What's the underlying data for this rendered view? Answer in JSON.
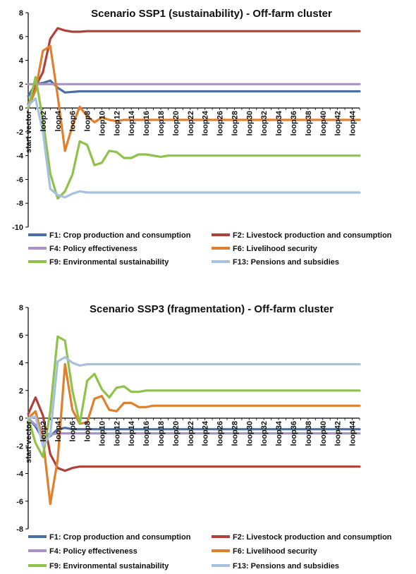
{
  "chart_data": [
    {
      "type": "line",
      "title": "Scenario SSP1 (sustainability) - Off-farm cluster",
      "xlabel": "",
      "ylabel": "",
      "ylim": [
        -10,
        8
      ],
      "yticks": [
        8,
        6,
        4,
        2,
        0,
        -2,
        -4,
        -6,
        -8,
        -10
      ],
      "categories": [
        "start vector",
        "loop1",
        "loop2",
        "loop3",
        "loop4",
        "loop5",
        "loop6",
        "loop7",
        "loop8",
        "loop9",
        "loop10",
        "loop11",
        "loop12",
        "loop13",
        "loop14",
        "loop15",
        "loop16",
        "loop17",
        "loop18",
        "loop19",
        "loop20",
        "loop21",
        "loop22",
        "loop23",
        "loop24",
        "loop25",
        "loop26",
        "loop27",
        "loop28",
        "loop29",
        "loop30",
        "loop31",
        "loop32",
        "loop33",
        "loop34",
        "loop35",
        "loop36",
        "loop37",
        "loop38",
        "loop39",
        "loop40",
        "loop41",
        "loop42",
        "loop43",
        "loop44",
        "loop45"
      ],
      "xtick_labels": [
        "start vector",
        "loop2",
        "loop4",
        "loop6",
        "loop8",
        "loop10",
        "loop12",
        "loop14",
        "loop16",
        "loop18",
        "loop20",
        "loop22",
        "loop24",
        "loop26",
        "loop28",
        "loop30",
        "loop32",
        "loop34",
        "loop36",
        "loop38",
        "loop40",
        "loop42",
        "loop44"
      ],
      "legend_position": "bottom",
      "series": [
        {
          "name": "F1: Crop production and consumption",
          "color": "#4a6fa5",
          "values": [
            1.0,
            2.0,
            2.1,
            2.3,
            1.7,
            1.3,
            1.35,
            1.4,
            1.4,
            1.4,
            1.4,
            1.4,
            1.4,
            1.4,
            1.4,
            1.4,
            1.4,
            1.4,
            1.4,
            1.4,
            1.4,
            1.4,
            1.4,
            1.4,
            1.4,
            1.4,
            1.4,
            1.4,
            1.4,
            1.4,
            1.4,
            1.4,
            1.4,
            1.4,
            1.4,
            1.4,
            1.4,
            1.4,
            1.4,
            1.4,
            1.4,
            1.4,
            1.4,
            1.4,
            1.4,
            1.4
          ]
        },
        {
          "name": "F2: Livestock production and consumption",
          "color": "#b0403a",
          "values": [
            0.3,
            1.8,
            3.0,
            5.8,
            6.7,
            6.5,
            6.4,
            6.4,
            6.45,
            6.45,
            6.45,
            6.45,
            6.45,
            6.45,
            6.45,
            6.45,
            6.45,
            6.45,
            6.45,
            6.45,
            6.45,
            6.45,
            6.45,
            6.45,
            6.45,
            6.45,
            6.45,
            6.45,
            6.45,
            6.45,
            6.45,
            6.45,
            6.45,
            6.45,
            6.45,
            6.45,
            6.45,
            6.45,
            6.45,
            6.45,
            6.45,
            6.45,
            6.45,
            6.45,
            6.45,
            6.45
          ]
        },
        {
          "name": "F4: Policy effectiveness",
          "color": "#a892c8",
          "values": [
            2.0,
            2.0,
            2.0,
            2.0,
            2.0,
            2.0,
            2.0,
            2.0,
            2.0,
            2.0,
            2.0,
            2.0,
            2.0,
            2.0,
            2.0,
            2.0,
            2.0,
            2.0,
            2.0,
            2.0,
            2.0,
            2.0,
            2.0,
            2.0,
            2.0,
            2.0,
            2.0,
            2.0,
            2.0,
            2.0,
            2.0,
            2.0,
            2.0,
            2.0,
            2.0,
            2.0,
            2.0,
            2.0,
            2.0,
            2.0,
            2.0,
            2.0,
            2.0,
            2.0,
            2.0,
            2.0
          ]
        },
        {
          "name": "F6: Livelihood security",
          "color": "#e07f2c",
          "values": [
            0.0,
            1.5,
            4.8,
            5.2,
            1.0,
            -3.6,
            -1.5,
            0.1,
            -0.7,
            -1.2,
            -0.8,
            -1.0,
            -1.1,
            -1.0,
            -1.0,
            -1.0,
            -1.0,
            -1.0,
            -1.0,
            -1.0,
            -1.0,
            -1.0,
            -1.0,
            -1.0,
            -1.0,
            -1.0,
            -1.0,
            -1.0,
            -1.0,
            -1.0,
            -1.0,
            -1.0,
            -1.0,
            -1.0,
            -1.0,
            -1.0,
            -1.0,
            -1.0,
            -1.0,
            -1.0,
            -1.0,
            -1.0,
            -1.0,
            -1.0,
            -1.0,
            -1.0
          ]
        },
        {
          "name": "F9: Environmental sustainability",
          "color": "#8fc24b",
          "values": [
            0.0,
            2.6,
            -1.0,
            -5.5,
            -7.6,
            -7.0,
            -5.6,
            -2.8,
            -3.1,
            -4.8,
            -4.6,
            -3.6,
            -3.7,
            -4.2,
            -4.2,
            -3.9,
            -3.9,
            -4.0,
            -4.1,
            -4.0,
            -4.0,
            -4.0,
            -4.0,
            -4.0,
            -4.0,
            -4.0,
            -4.0,
            -4.0,
            -4.0,
            -4.0,
            -4.0,
            -4.0,
            -4.0,
            -4.0,
            -4.0,
            -4.0,
            -4.0,
            -4.0,
            -4.0,
            -4.0,
            -4.0,
            -4.0,
            -4.0,
            -4.0,
            -4.0,
            -4.0
          ]
        },
        {
          "name": "F13: Pensions and subsidies",
          "color": "#a8c0e0",
          "values": [
            0.2,
            0.8,
            -2.0,
            -6.8,
            -7.3,
            -7.5,
            -7.2,
            -7.0,
            -7.1,
            -7.1,
            -7.1,
            -7.1,
            -7.1,
            -7.1,
            -7.1,
            -7.1,
            -7.1,
            -7.1,
            -7.1,
            -7.1,
            -7.1,
            -7.1,
            -7.1,
            -7.1,
            -7.1,
            -7.1,
            -7.1,
            -7.1,
            -7.1,
            -7.1,
            -7.1,
            -7.1,
            -7.1,
            -7.1,
            -7.1,
            -7.1,
            -7.1,
            -7.1,
            -7.1,
            -7.1,
            -7.1,
            -7.1,
            -7.1,
            -7.1,
            -7.1,
            -7.1
          ]
        }
      ]
    },
    {
      "type": "line",
      "title": "Scenario SSP3 (fragmentation) - Off-farm cluster",
      "xlabel": "",
      "ylabel": "",
      "ylim": [
        -8,
        8
      ],
      "yticks": [
        8,
        6,
        4,
        2,
        0,
        -2,
        -4,
        -6,
        -8
      ],
      "categories": [
        "start vector",
        "loop1",
        "loop2",
        "loop3",
        "loop4",
        "loop5",
        "loop6",
        "loop7",
        "loop8",
        "loop9",
        "loop10",
        "loop11",
        "loop12",
        "loop13",
        "loop14",
        "loop15",
        "loop16",
        "loop17",
        "loop18",
        "loop19",
        "loop20",
        "loop21",
        "loop22",
        "loop23",
        "loop24",
        "loop25",
        "loop26",
        "loop27",
        "loop28",
        "loop29",
        "loop30",
        "loop31",
        "loop32",
        "loop33",
        "loop34",
        "loop35",
        "loop36",
        "loop37",
        "loop38",
        "loop39",
        "loop40",
        "loop41",
        "loop42",
        "loop43",
        "loop44",
        "loop45"
      ],
      "xtick_labels": [
        "start vector",
        "loop2",
        "loop4",
        "loop6",
        "loop8",
        "loop10",
        "loop12",
        "loop14",
        "loop16",
        "loop18",
        "loop20",
        "loop22",
        "loop24",
        "loop26",
        "loop28",
        "loop30",
        "loop32",
        "loop34",
        "loop36",
        "loop38",
        "loop40",
        "loop42",
        "loop44"
      ],
      "legend_position": "bottom",
      "series": [
        {
          "name": "F1: Crop production and consumption",
          "color": "#4a6fa5",
          "values": [
            0.0,
            -0.6,
            -1.5,
            -1.3,
            -0.8,
            -0.7,
            -0.8,
            -0.8,
            -0.8,
            -0.8,
            -0.8,
            -0.8,
            -0.8,
            -0.8,
            -0.8,
            -0.8,
            -0.8,
            -0.8,
            -0.8,
            -0.8,
            -0.8,
            -0.8,
            -0.8,
            -0.8,
            -0.8,
            -0.8,
            -0.8,
            -0.8,
            -0.8,
            -0.8,
            -0.8,
            -0.8,
            -0.8,
            -0.8,
            -0.8,
            -0.8,
            -0.8,
            -0.8,
            -0.8,
            -0.8,
            -0.8,
            -0.8,
            -0.8,
            -0.8,
            -0.8,
            -0.8
          ]
        },
        {
          "name": "F2: Livestock production and consumption",
          "color": "#b0403a",
          "values": [
            0.3,
            1.5,
            0.2,
            -2.6,
            -3.6,
            -3.8,
            -3.6,
            -3.5,
            -3.5,
            -3.5,
            -3.5,
            -3.5,
            -3.5,
            -3.5,
            -3.5,
            -3.5,
            -3.5,
            -3.5,
            -3.5,
            -3.5,
            -3.5,
            -3.5,
            -3.5,
            -3.5,
            -3.5,
            -3.5,
            -3.5,
            -3.5,
            -3.5,
            -3.5,
            -3.5,
            -3.5,
            -3.5,
            -3.5,
            -3.5,
            -3.5,
            -3.5,
            -3.5,
            -3.5,
            -3.5,
            -3.5,
            -3.5,
            -3.5,
            -3.5,
            -3.5,
            -3.5
          ]
        },
        {
          "name": "F4: Policy effectiveness",
          "color": "#a892c8",
          "values": [
            0.0,
            -0.5,
            -1.0,
            -1.2,
            -1.1,
            -1.1,
            -1.1,
            -1.1,
            -1.1,
            -1.1,
            -1.1,
            -1.1,
            -1.1,
            -1.1,
            -1.1,
            -1.1,
            -1.1,
            -1.1,
            -1.1,
            -1.1,
            -1.1,
            -1.1,
            -1.1,
            -1.1,
            -1.1,
            -1.1,
            -1.1,
            -1.1,
            -1.1,
            -1.1,
            -1.1,
            -1.1,
            -1.1,
            -1.1,
            -1.1,
            -1.1,
            -1.1,
            -1.1,
            -1.1,
            -1.1,
            -1.1,
            -1.1,
            -1.1,
            -1.1,
            -1.1,
            -1.1
          ]
        },
        {
          "name": "F6: Livelihood security",
          "color": "#e07f2c",
          "values": [
            0.0,
            0.5,
            -1.5,
            -6.2,
            -3.0,
            3.9,
            0.6,
            -0.4,
            -0.3,
            1.4,
            1.6,
            0.6,
            0.5,
            1.1,
            1.1,
            0.8,
            0.8,
            0.9,
            0.9,
            0.9,
            0.9,
            0.9,
            0.9,
            0.9,
            0.9,
            0.9,
            0.9,
            0.9,
            0.9,
            0.9,
            0.9,
            0.9,
            0.9,
            0.9,
            0.9,
            0.9,
            0.9,
            0.9,
            0.9,
            0.9,
            0.9,
            0.9,
            0.9,
            0.9,
            0.9,
            0.9
          ]
        },
        {
          "name": "F9: Environmental sustainability",
          "color": "#8fc24b",
          "values": [
            0.0,
            -1.8,
            -2.8,
            0.5,
            5.9,
            5.6,
            2.0,
            -0.4,
            2.7,
            3.2,
            2.1,
            1.5,
            2.2,
            2.3,
            1.9,
            1.9,
            2.0,
            2.0,
            2.0,
            2.0,
            2.0,
            2.0,
            2.0,
            2.0,
            2.0,
            2.0,
            2.0,
            2.0,
            2.0,
            2.0,
            2.0,
            2.0,
            2.0,
            2.0,
            2.0,
            2.0,
            2.0,
            2.0,
            2.0,
            2.0,
            2.0,
            2.0,
            2.0,
            2.0,
            2.0,
            2.0
          ]
        },
        {
          "name": "F13: Pensions and subsidies",
          "color": "#a8c0e0",
          "values": [
            0.0,
            0.1,
            -2.0,
            -1.2,
            4.1,
            4.4,
            4.0,
            3.8,
            3.9,
            3.9,
            3.9,
            3.9,
            3.9,
            3.9,
            3.9,
            3.9,
            3.9,
            3.9,
            3.9,
            3.9,
            3.9,
            3.9,
            3.9,
            3.9,
            3.9,
            3.9,
            3.9,
            3.9,
            3.9,
            3.9,
            3.9,
            3.9,
            3.9,
            3.9,
            3.9,
            3.9,
            3.9,
            3.9,
            3.9,
            3.9,
            3.9,
            3.9,
            3.9,
            3.9,
            3.9,
            3.9
          ]
        }
      ]
    }
  ]
}
